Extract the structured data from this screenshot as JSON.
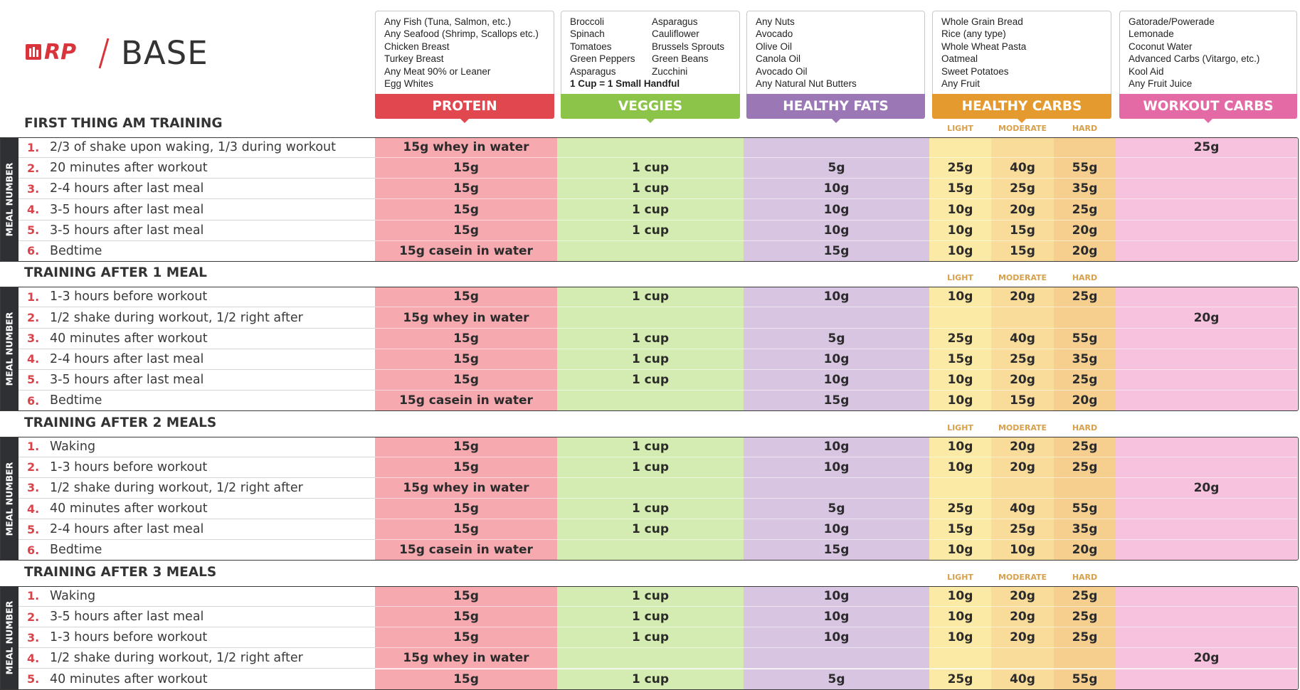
{
  "header": {
    "logo": "RP",
    "title": "BASE"
  },
  "food_groups": [
    {
      "name": "PROTEIN",
      "items": [
        "Any Fish (Tuna, Salmon, etc.)",
        "Any Seafood (Shrimp, Scallops etc.)",
        "Chicken Breast",
        "Turkey Breast",
        "Any Meat 90% or Leaner",
        "Egg Whites"
      ]
    },
    {
      "name": "VEGGIES",
      "items": [
        [
          "Broccoli",
          "Spinach",
          "Tomatoes",
          "Green Peppers",
          "Asparagus"
        ],
        [
          "Asparagus",
          "Cauliflower",
          "Brussels Sprouts",
          "Green Beans",
          "Zucchini"
        ]
      ],
      "note": "1 Cup = 1 Small Handful"
    },
    {
      "name": "HEALTHY FATS",
      "items": [
        "Any Nuts",
        "Avocado",
        "Olive Oil",
        "Canola Oil",
        "Avocado Oil",
        "Any Natural Nut Butters"
      ]
    },
    {
      "name": "HEALTHY CARBS",
      "items": [
        "Whole Grain Bread",
        "Rice (any type)",
        "Whole Wheat Pasta",
        "Oatmeal",
        "Sweet Potatoes",
        "Any Fruit"
      ]
    },
    {
      "name": "WORKOUT CARBS",
      "items": [
        "Gatorade/Powerade",
        "Lemonade",
        "Coconut Water",
        "Advanced Carbs (Vitargo, etc.)",
        "Kool Aid",
        "Any Fruit Juice"
      ]
    }
  ],
  "carb_levels": [
    "LIGHT",
    "MODERATE",
    "HARD"
  ],
  "side_label": "MEAL NUMBER",
  "sections": [
    {
      "title": "FIRST THING AM TRAINING",
      "rows": [
        {
          "n": "1.",
          "text": "2/3 of shake upon waking, 1/3 during workout",
          "cells": [
            "15g whey in water",
            null,
            null,
            null,
            null,
            null,
            "25g"
          ]
        },
        {
          "n": "2.",
          "text": "20 minutes after workout",
          "cells": [
            "15g",
            "1 cup",
            "5g",
            "25g",
            "40g",
            "55g",
            null
          ]
        },
        {
          "n": "3.",
          "text": "2-4 hours after last meal",
          "cells": [
            "15g",
            "1 cup",
            "10g",
            "15g",
            "25g",
            "35g",
            null
          ]
        },
        {
          "n": "4.",
          "text": "3-5 hours after last meal",
          "cells": [
            "15g",
            "1 cup",
            "10g",
            "10g",
            "20g",
            "25g",
            null
          ]
        },
        {
          "n": "5.",
          "text": "3-5 hours after last meal",
          "cells": [
            "15g",
            "1 cup",
            "10g",
            "10g",
            "15g",
            "20g",
            null
          ]
        },
        {
          "n": "6.",
          "text": "Bedtime",
          "cells": [
            "15g casein in water",
            null,
            "15g",
            "10g",
            "15g",
            "20g",
            null
          ]
        }
      ]
    },
    {
      "title": "TRAINING AFTER 1 MEAL",
      "rows": [
        {
          "n": "1.",
          "text": "1-3 hours before workout",
          "cells": [
            "15g",
            "1 cup",
            "10g",
            "10g",
            "20g",
            "25g",
            null
          ]
        },
        {
          "n": "2.",
          "text": "1/2 shake during workout, 1/2 right after",
          "cells": [
            "15g whey in water",
            null,
            null,
            null,
            null,
            null,
            "20g"
          ]
        },
        {
          "n": "3.",
          "text": "40 minutes after workout",
          "cells": [
            "15g",
            "1 cup",
            "5g",
            "25g",
            "40g",
            "55g",
            null
          ]
        },
        {
          "n": "4.",
          "text": "2-4 hours after last meal",
          "cells": [
            "15g",
            "1 cup",
            "10g",
            "15g",
            "25g",
            "35g",
            null
          ]
        },
        {
          "n": "5.",
          "text": "3-5 hours after last meal",
          "cells": [
            "15g",
            "1 cup",
            "10g",
            "10g",
            "20g",
            "25g",
            null
          ]
        },
        {
          "n": "6.",
          "text": "Bedtime",
          "cells": [
            "15g casein in water",
            null,
            "15g",
            "10g",
            "15g",
            "20g",
            null
          ]
        }
      ]
    },
    {
      "title": "TRAINING AFTER 2 MEALS",
      "rows": [
        {
          "n": "1.",
          "text": "Waking",
          "cells": [
            "15g",
            "1 cup",
            "10g",
            "10g",
            "20g",
            "25g",
            null
          ]
        },
        {
          "n": "2.",
          "text": "1-3 hours before workout",
          "cells": [
            "15g",
            "1 cup",
            "10g",
            "10g",
            "20g",
            "25g",
            null
          ]
        },
        {
          "n": "3.",
          "text": "1/2 shake during workout, 1/2 right after",
          "cells": [
            "15g whey in water",
            null,
            null,
            null,
            null,
            null,
            "20g"
          ]
        },
        {
          "n": "4.",
          "text": "40 minutes after workout",
          "cells": [
            "15g",
            "1 cup",
            "5g",
            "25g",
            "40g",
            "55g",
            null
          ]
        },
        {
          "n": "5.",
          "text": "2-4 hours after last meal",
          "cells": [
            "15g",
            "1 cup",
            "10g",
            "15g",
            "25g",
            "35g",
            null
          ]
        },
        {
          "n": "6.",
          "text": "Bedtime",
          "cells": [
            "15g casein in water",
            null,
            "15g",
            "10g",
            "10g",
            "20g",
            null
          ]
        }
      ]
    },
    {
      "title": "TRAINING AFTER 3 MEALS",
      "rows": [
        {
          "n": "1.",
          "text": "Waking",
          "cells": [
            "15g",
            "1 cup",
            "10g",
            "10g",
            "20g",
            "25g",
            null
          ]
        },
        {
          "n": "2.",
          "text": "3-5 hours after last meal",
          "cells": [
            "15g",
            "1 cup",
            "10g",
            "10g",
            "20g",
            "25g",
            null
          ]
        },
        {
          "n": "3.",
          "text": "1-3 hours before workout",
          "cells": [
            "15g",
            "1 cup",
            "10g",
            "10g",
            "20g",
            "25g",
            null
          ]
        },
        {
          "n": "4.",
          "text": "1/2 shake during workout, 1/2 right after",
          "cells": [
            "15g whey in water",
            null,
            null,
            null,
            null,
            null,
            "20g"
          ]
        },
        {
          "n": "5.",
          "text": "40 minutes after workout",
          "cells": [
            "15g",
            "1 cup",
            "5g",
            "25g",
            "40g",
            "55g",
            null
          ]
        }
      ]
    }
  ]
}
